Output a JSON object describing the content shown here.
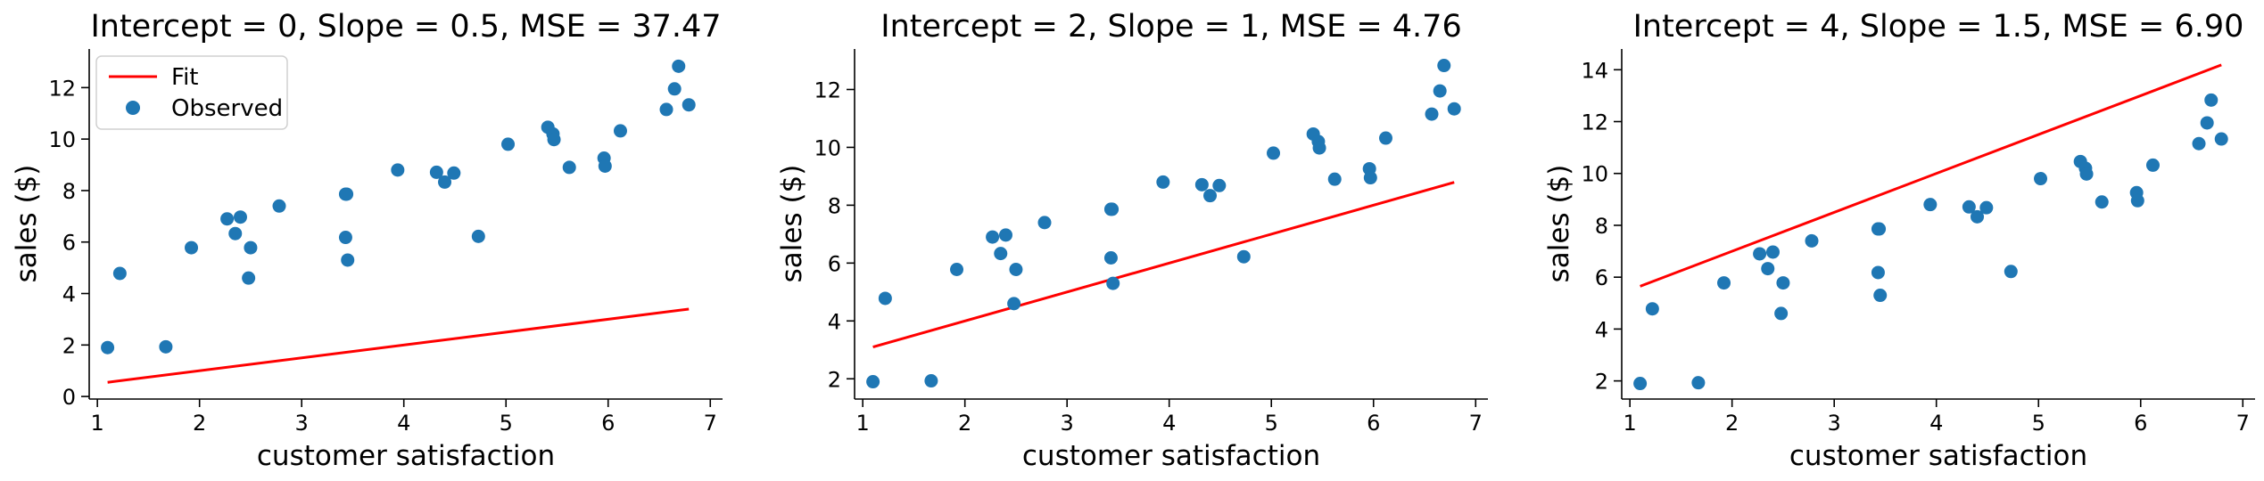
{
  "colors": {
    "fit": "#ff0000",
    "observed": "#1f77b4",
    "axes": "#000000"
  },
  "observations": {
    "x": [
      1.1,
      1.22,
      1.67,
      1.92,
      2.27,
      2.35,
      2.4,
      2.48,
      2.5,
      2.78,
      3.43,
      3.43,
      3.44,
      3.45,
      3.94,
      4.32,
      4.4,
      4.49,
      4.73,
      5.02,
      5.41,
      5.46,
      5.47,
      5.62,
      5.96,
      5.97,
      6.12,
      6.57,
      6.65,
      6.69,
      6.79
    ],
    "y": [
      1.9,
      4.78,
      1.93,
      5.78,
      6.9,
      6.33,
      6.97,
      4.6,
      5.78,
      7.4,
      6.18,
      7.86,
      7.86,
      5.3,
      8.8,
      8.71,
      8.33,
      8.68,
      6.22,
      9.8,
      10.46,
      10.2,
      9.98,
      8.9,
      9.26,
      8.95,
      10.32,
      11.15,
      11.95,
      12.83,
      11.33
    ]
  },
  "chart_data": [
    {
      "type": "scatter",
      "title": "Intercept = 0, Slope = 0.5, MSE = 37.47",
      "xlabel": "customer satisfaction",
      "ylabel": "sales ($)",
      "xlim": [
        0.92,
        7.12
      ],
      "ylim": [
        -0.1,
        13.5
      ],
      "xticks": [
        1,
        2,
        3,
        4,
        5,
        6,
        7
      ],
      "yticks": [
        0,
        2,
        4,
        6,
        8,
        10,
        12
      ],
      "grid": false,
      "legend": {
        "placement": "top-left",
        "entries": [
          "Fit",
          "Observed"
        ]
      },
      "series": [
        {
          "name": "Fit",
          "kind": "line",
          "intercept": 0,
          "slope": 0.5,
          "x": [
            1.1,
            6.79
          ]
        },
        {
          "name": "Observed",
          "kind": "scatter"
        }
      ]
    },
    {
      "type": "scatter",
      "title": "Intercept = 2, Slope = 1, MSE = 4.76",
      "xlabel": "customer satisfaction",
      "ylabel": "sales ($)",
      "xlim": [
        0.92,
        7.12
      ],
      "ylim": [
        1.3,
        13.4
      ],
      "xticks": [
        1,
        2,
        3,
        4,
        5,
        6,
        7
      ],
      "yticks": [
        2,
        4,
        6,
        8,
        10,
        12
      ],
      "grid": false,
      "series": [
        {
          "name": "Fit",
          "kind": "line",
          "intercept": 2,
          "slope": 1,
          "x": [
            1.1,
            6.79
          ]
        },
        {
          "name": "Observed",
          "kind": "scatter"
        }
      ]
    },
    {
      "type": "scatter",
      "title": "Intercept = 4, Slope = 1.5, MSE = 6.90",
      "xlabel": "customer satisfaction",
      "ylabel": "sales ($)",
      "xlim": [
        0.92,
        7.12
      ],
      "ylim": [
        1.3,
        14.8
      ],
      "xticks": [
        1,
        2,
        3,
        4,
        5,
        6,
        7
      ],
      "yticks": [
        2,
        4,
        6,
        8,
        10,
        12,
        14
      ],
      "grid": false,
      "series": [
        {
          "name": "Fit",
          "kind": "line",
          "intercept": 4,
          "slope": 1.5,
          "x": [
            1.1,
            6.79
          ]
        },
        {
          "name": "Observed",
          "kind": "scatter"
        }
      ]
    }
  ]
}
